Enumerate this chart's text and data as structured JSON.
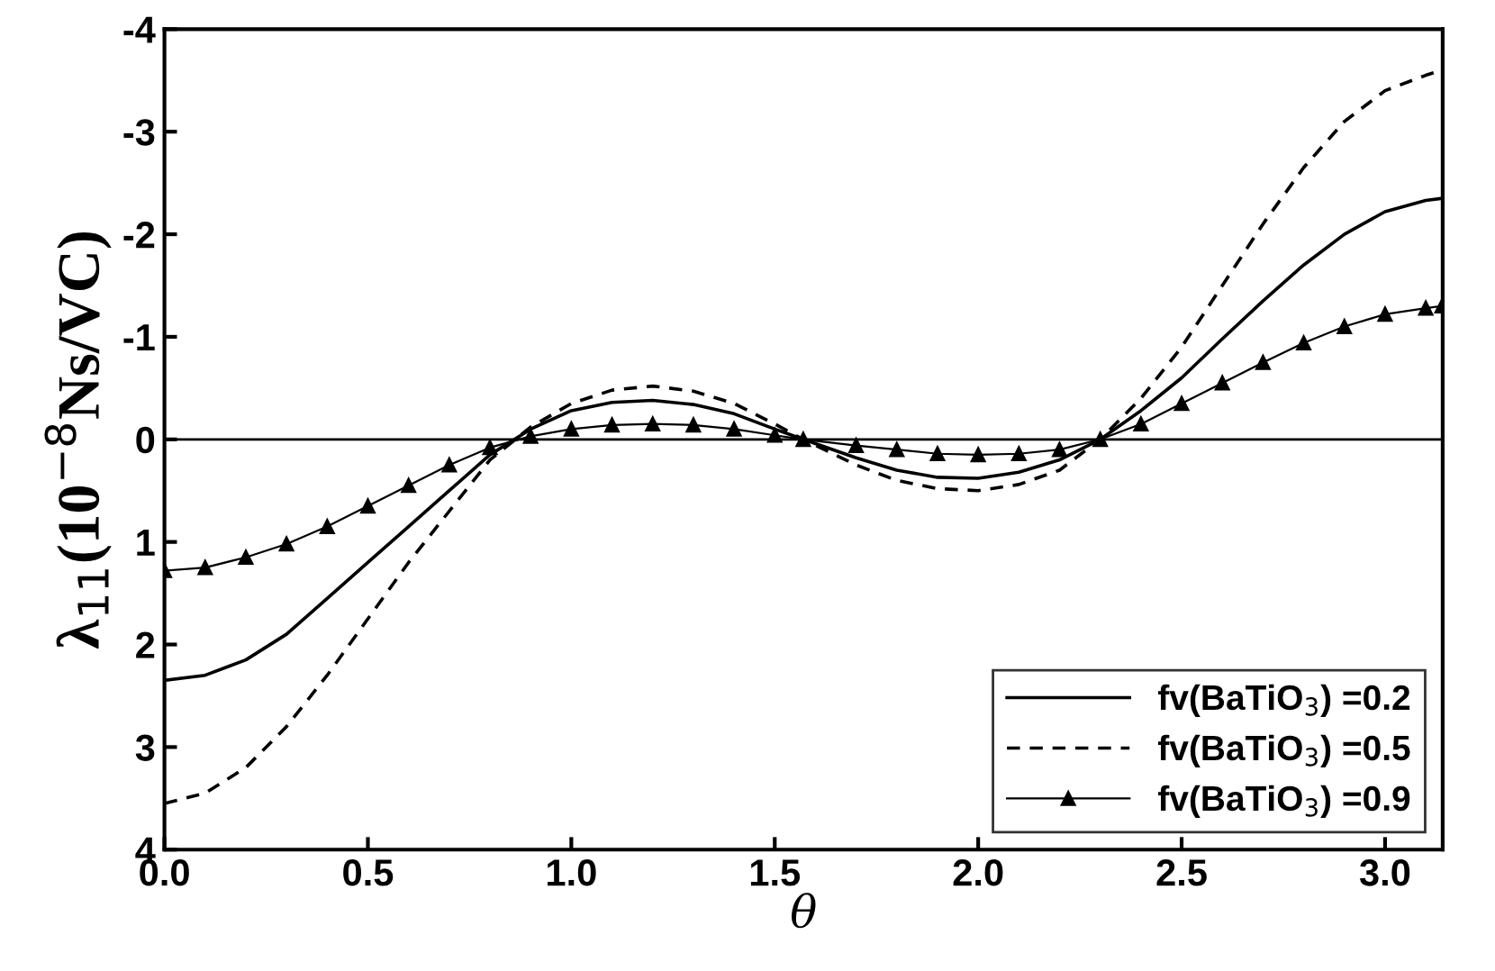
{
  "chart_data": {
    "type": "line",
    "xlabel": "θ",
    "ylabel": "λ$_{11}$(10$^{−8}$Ns/VC)",
    "x": [
      0,
      0.1,
      0.2,
      0.3,
      0.4,
      0.5,
      0.6,
      0.7,
      0.8,
      0.9,
      1.0,
      1.1,
      1.2,
      1.3,
      1.4,
      1.5,
      1.57,
      1.7,
      1.8,
      1.9,
      2.0,
      2.1,
      2.2,
      2.3,
      2.4,
      2.5,
      2.6,
      2.7,
      2.8,
      2.9,
      3.0,
      3.1,
      3.14
    ],
    "series": [
      {
        "name": "fv(BaTiO$_{3}$) =0.2",
        "color": "#000000",
        "line_style": "solid",
        "marker": "none",
        "values": [
          2.35,
          2.3,
          2.15,
          1.9,
          1.55,
          1.2,
          0.85,
          0.5,
          0.15,
          -0.1,
          -0.28,
          -0.36,
          -0.38,
          -0.34,
          -0.25,
          -0.1,
          0,
          0.18,
          0.3,
          0.37,
          0.38,
          0.32,
          0.2,
          0,
          -0.28,
          -0.6,
          -0.98,
          -1.35,
          -1.7,
          -2.0,
          -2.22,
          -2.33,
          -2.35
        ]
      },
      {
        "name": "fv(BaTiO$_{3}$) =0.5",
        "color": "#000000",
        "line_style": "dashed",
        "marker": "none",
        "values": [
          3.55,
          3.45,
          3.2,
          2.8,
          2.3,
          1.75,
          1.2,
          0.7,
          0.2,
          -0.12,
          -0.35,
          -0.48,
          -0.52,
          -0.47,
          -0.35,
          -0.15,
          0,
          0.25,
          0.4,
          0.48,
          0.5,
          0.44,
          0.3,
          0,
          -0.4,
          -0.9,
          -1.5,
          -2.1,
          -2.65,
          -3.1,
          -3.4,
          -3.55,
          -3.6
        ]
      },
      {
        "name": "fv(BaTiO$_{3}$) =0.9",
        "color": "#000000",
        "line_style": "solid",
        "marker": "triangle",
        "values": [
          1.28,
          1.25,
          1.15,
          1.02,
          0.85,
          0.65,
          0.45,
          0.25,
          0.08,
          -0.03,
          -0.1,
          -0.14,
          -0.15,
          -0.14,
          -0.1,
          -0.04,
          0,
          0.06,
          0.1,
          0.14,
          0.15,
          0.14,
          0.1,
          0,
          -0.15,
          -0.35,
          -0.55,
          -0.75,
          -0.94,
          -1.1,
          -1.22,
          -1.28,
          -1.3
        ]
      }
    ],
    "xlim": [
      0,
      3.1416
    ],
    "xticks": [
      {
        "value": 0,
        "label": "0.0"
      },
      0.5,
      {
        "value": 1,
        "label": "1.0"
      },
      1.5,
      {
        "value": 2,
        "label": "2.0"
      },
      2.5,
      {
        "value": 3,
        "label": "3.0"
      }
    ],
    "ylim": [
      4,
      -4
    ],
    "yticks": [
      -4,
      -3,
      -2,
      -1,
      0,
      1,
      2,
      3,
      4
    ],
    "ref_lines": [
      {
        "axis": "y",
        "value": 0,
        "color": "#000000"
      }
    ],
    "grid": false,
    "legend": "bottom right"
  }
}
